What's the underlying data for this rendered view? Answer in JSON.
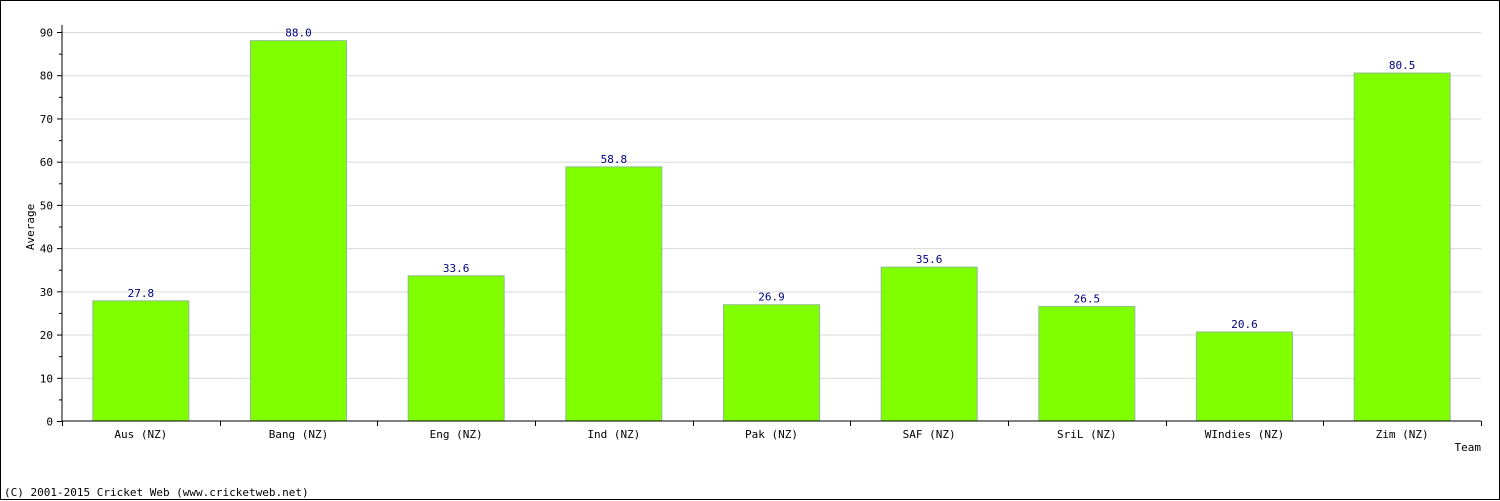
{
  "chart_data": {
    "type": "bar",
    "title": "",
    "xlabel": "Team",
    "ylabel": "Average",
    "categories": [
      "Aus (NZ)",
      "Bang (NZ)",
      "Eng (NZ)",
      "Ind (NZ)",
      "Pak (NZ)",
      "SAF (NZ)",
      "SriL (NZ)",
      "WIndies (NZ)",
      "Zim (NZ)"
    ],
    "values": [
      27.8,
      88.0,
      33.6,
      58.8,
      26.9,
      35.6,
      26.5,
      20.6,
      80.5
    ],
    "value_labels": [
      "27.8",
      "88.0",
      "33.6",
      "58.8",
      "26.9",
      "35.6",
      "26.5",
      "20.6",
      "80.5"
    ],
    "ylim": [
      0,
      90
    ],
    "yticks": [
      0,
      10,
      20,
      30,
      40,
      50,
      60,
      70,
      80,
      90
    ],
    "grid": true,
    "legend": "none",
    "bar_color": "#7fff00",
    "bar_edge_color": "#8fbc8f",
    "label_color": "#000080",
    "grid_color": "#d9d9d9"
  },
  "footer": {
    "copyright": "(C) 2001-2015 Cricket Web (www.cricketweb.net)"
  }
}
